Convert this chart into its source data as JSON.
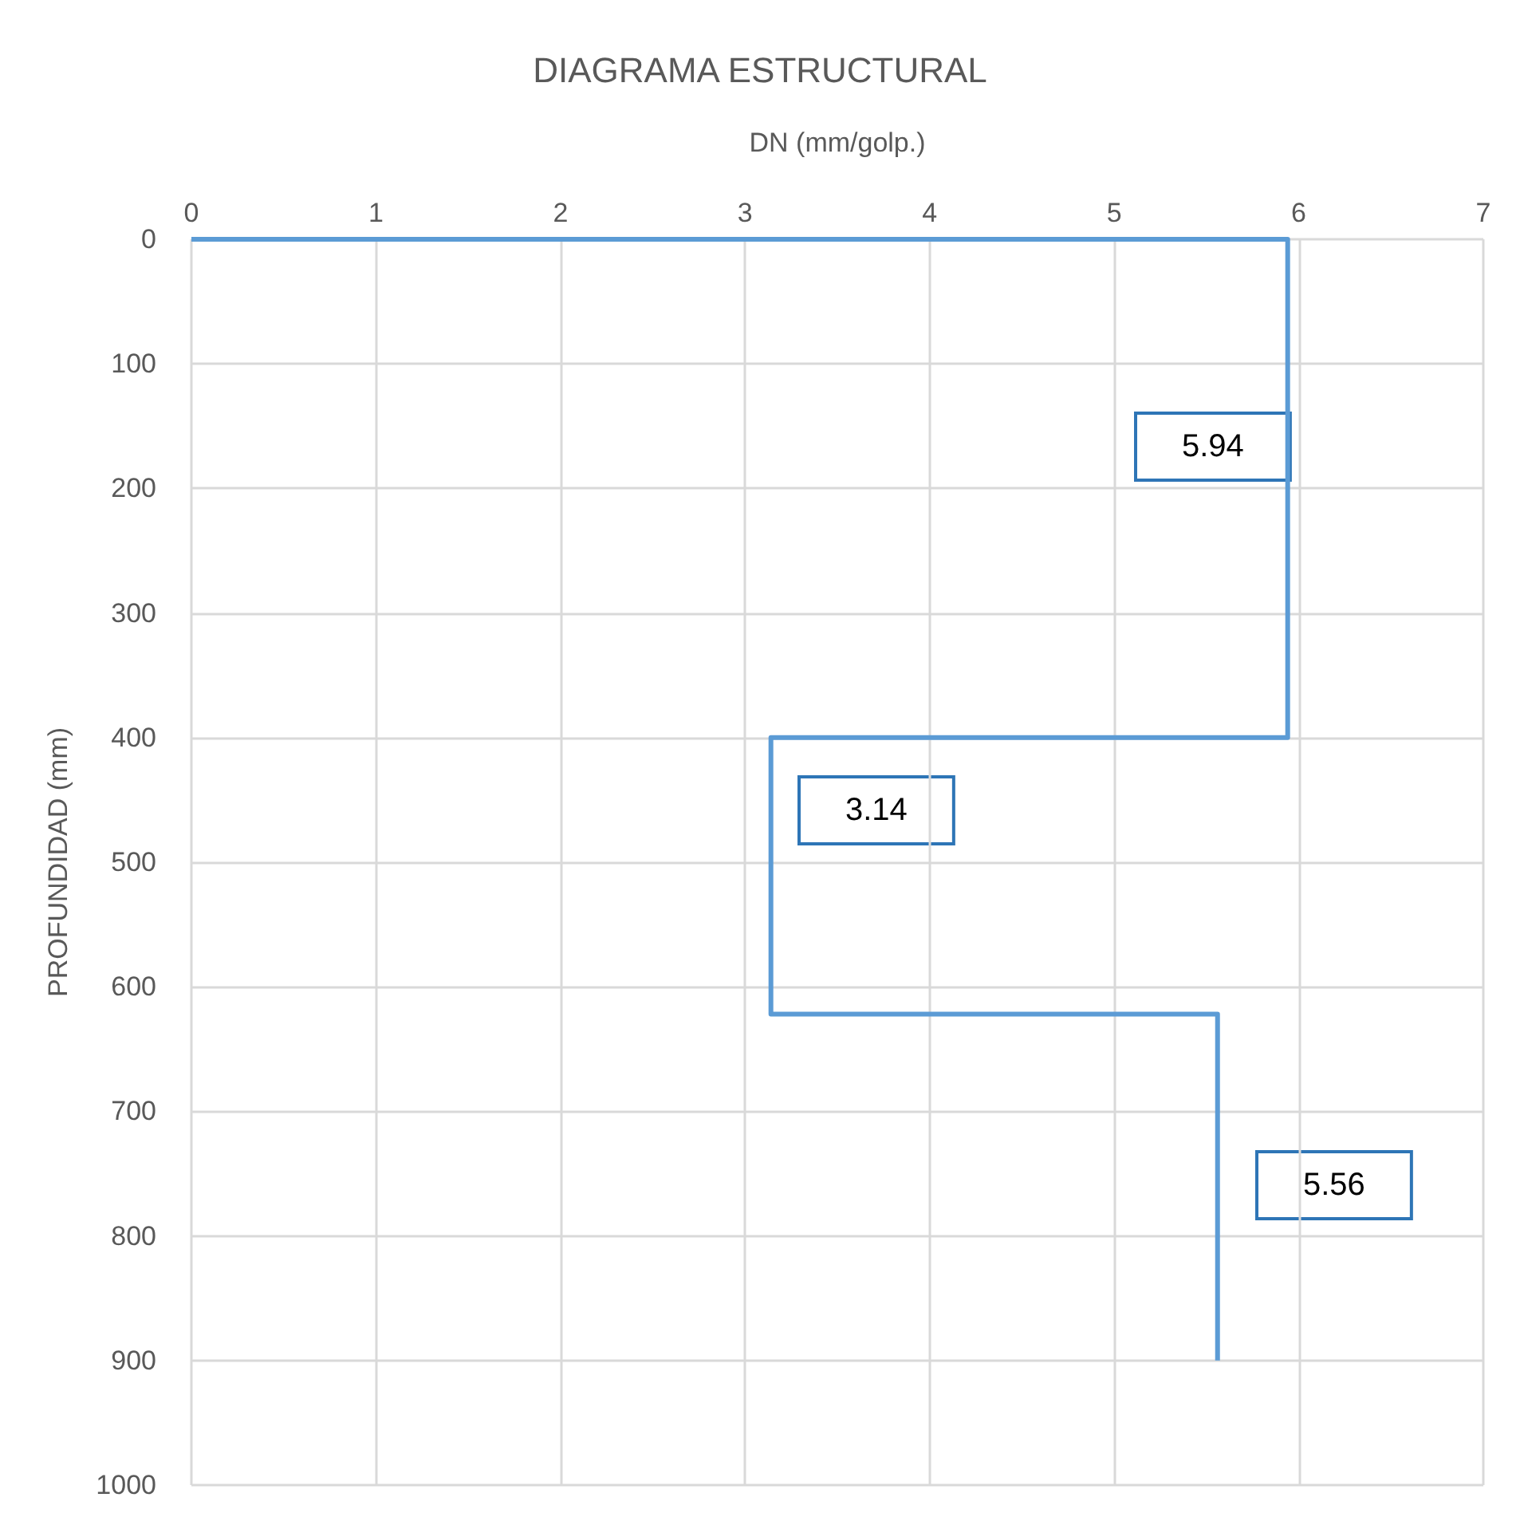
{
  "chart_data": {
    "type": "line",
    "title": "DIAGRAMA ESTRUCTURAL",
    "xlabel": "DN (mm/golp.)",
    "ylabel": "PROFUNDIDAD (mm)",
    "series": [
      {
        "color": "#5b9bd5",
        "x": [
          0,
          5.94,
          5.94,
          3.14,
          3.14,
          5.56,
          5.56
        ],
        "values": [
          0,
          0,
          400,
          400,
          622,
          622,
          900
        ]
      }
    ],
    "xlim": [
      0,
      7
    ],
    "xticks": [
      0,
      1,
      2,
      3,
      4,
      5,
      6,
      7
    ],
    "ylim": [
      1000,
      0
    ],
    "yticks": [
      0,
      100,
      200,
      300,
      400,
      500,
      600,
      700,
      800,
      900,
      1000
    ],
    "annotations": [
      "5.94",
      "3.14",
      "5.56"
    ],
    "grid": true,
    "marker": "none",
    "line_style": "solid"
  }
}
